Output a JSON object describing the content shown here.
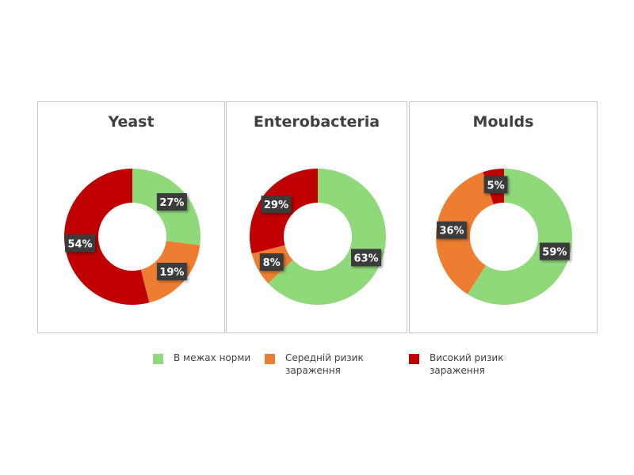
{
  "colors": {
    "normal": "#8fd97a",
    "medium": "#ed7d31",
    "high": "#c00000",
    "label_bg": "#3b3b3b",
    "label_text": "#ffffff"
  },
  "legend": [
    {
      "label": "В межах норми",
      "color": "#8fd97a"
    },
    {
      "label": "Середній ризик зараження",
      "color": "#ed7d31"
    },
    {
      "label": "Високий ризик зараження",
      "color": "#c00000"
    }
  ],
  "chart_data": [
    {
      "type": "pie",
      "title": "Yeast",
      "categories": [
        "В межах норми",
        "Середній ризик зараження",
        "Високий ризик зараження"
      ],
      "values": [
        27,
        19,
        54
      ],
      "labels": [
        "27%",
        "19%",
        "54%"
      ]
    },
    {
      "type": "pie",
      "title": "Enterobacteria",
      "categories": [
        "В межах норми",
        "Середній ризик зараження",
        "Високий ризик зараження"
      ],
      "values": [
        63,
        8,
        29
      ],
      "labels": [
        "63%",
        "8%",
        "29%"
      ]
    },
    {
      "type": "pie",
      "title": "Moulds",
      "categories": [
        "В межах норми",
        "Середній ризик зараження",
        "Високий ризик зараження"
      ],
      "values": [
        59,
        36,
        5
      ],
      "labels": [
        "59%",
        "36%",
        "5%"
      ]
    }
  ]
}
